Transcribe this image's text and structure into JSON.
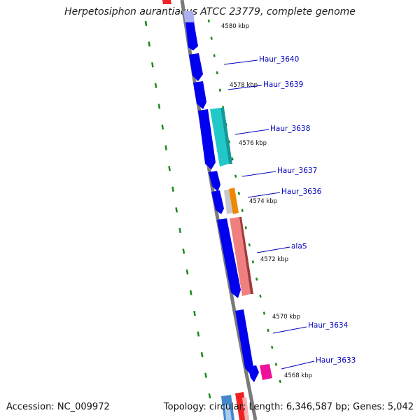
{
  "title": "Herpetosiphon aurantiacus ATCC 23779, complete genome",
  "accession": "Accession: NC_009972",
  "topology": "Topology: circular; Length: 6,346,587 bp; Genes: 5,042",
  "colors": {
    "backbone": "#808080",
    "forward_cds": "#0000ee",
    "tick": "#1a8a1a",
    "gene_label": "#0000bb"
  },
  "ticks": [
    {
      "label": "4580 kbp"
    },
    {
      "label": "4578 kbp"
    },
    {
      "label": "4576 kbp"
    },
    {
      "label": "4574 kbp"
    },
    {
      "label": "4572 kbp"
    },
    {
      "label": "4570 kbp"
    },
    {
      "label": "4568 kbp"
    }
  ],
  "genes": [
    {
      "label": "Haur_3640"
    },
    {
      "label": "Haur_3639"
    },
    {
      "label": "Haur_3638"
    },
    {
      "label": "Haur_3637"
    },
    {
      "label": "Haur_3636"
    },
    {
      "label": "alaS"
    },
    {
      "label": "Haur_3634"
    },
    {
      "label": "Haur_3633"
    }
  ]
}
